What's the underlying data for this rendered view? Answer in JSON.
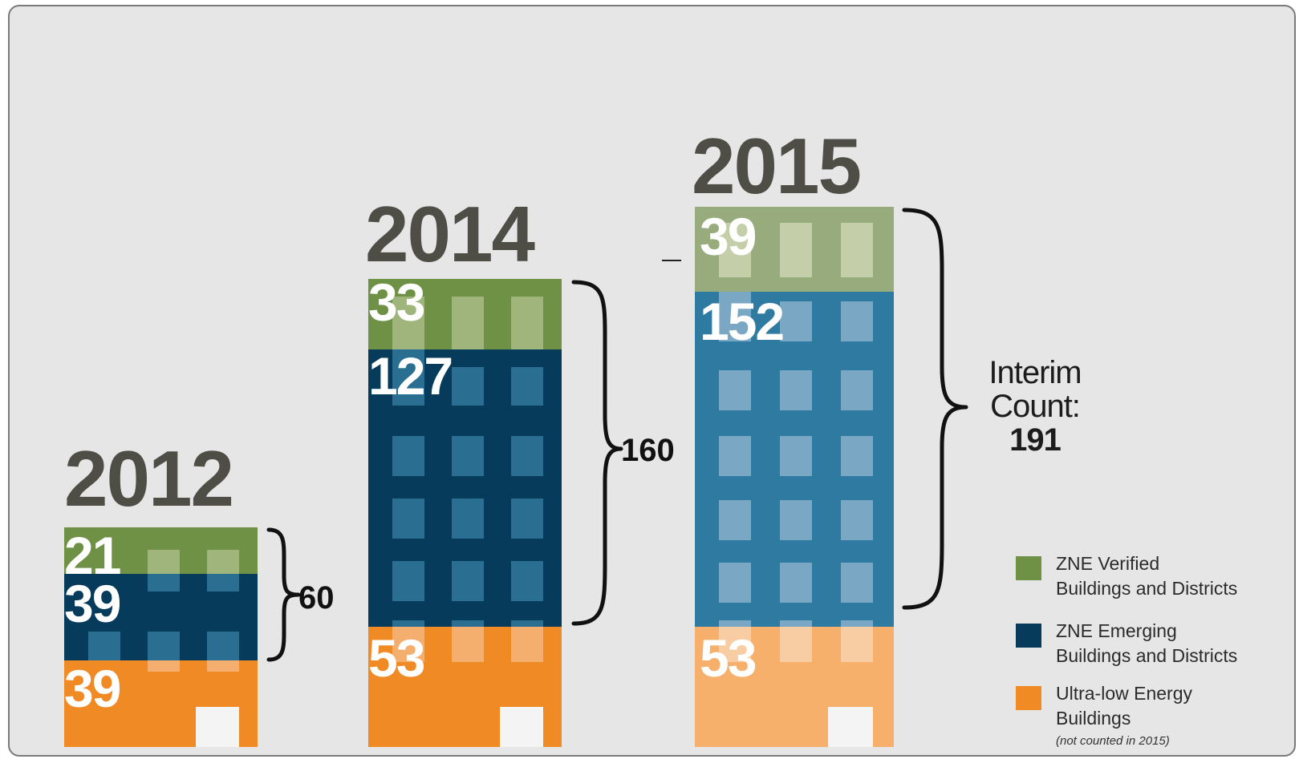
{
  "chart_data": {
    "type": "bar",
    "stacked": true,
    "categories": [
      "2012",
      "2014",
      "2015"
    ],
    "series": [
      {
        "name": "ZNE Verified Buildings and Districts",
        "values": [
          21,
          33,
          39
        ],
        "color": "#6e9145",
        "label_color": "#ffffff"
      },
      {
        "name": "ZNE Emerging Buildings and Districts",
        "values": [
          39,
          127,
          152
        ],
        "color": "#073b5c",
        "color_2015": "#2f7aa1"
      },
      {
        "name": "Ultra-low Energy Buildings",
        "values": [
          39,
          53,
          53
        ],
        "color": "#f08a24",
        "color_2015": "#f7b06c"
      }
    ],
    "totals": [
      {
        "year": "2012",
        "label": "60"
      },
      {
        "year": "2014",
        "label": "160"
      },
      {
        "year": "2015",
        "label_lines": [
          "Interim",
          "Count:"
        ],
        "value": "191"
      }
    ],
    "legend": {
      "placement": "bottom-right",
      "items": [
        {
          "line1": "ZNE Verified",
          "line2": "Buildings and Districts",
          "color": "#6e9145"
        },
        {
          "line1": "ZNE Emerging",
          "line2": "Buildings and Districts",
          "color": "#073b5c"
        },
        {
          "line1": "Ultra-low Energy",
          "line2": "Buildings",
          "note": "(not counted in 2015)",
          "color": "#f08a24"
        }
      ]
    },
    "window_colors": {
      "verified": "#9fb57c",
      "verified_2015": "#c4cfaa",
      "emerging": "#2a6f92",
      "emerging_2015": "#7aa8c4",
      "ultralow": "#f4ae6d",
      "ultralow_2015": "#f9cda3"
    }
  }
}
